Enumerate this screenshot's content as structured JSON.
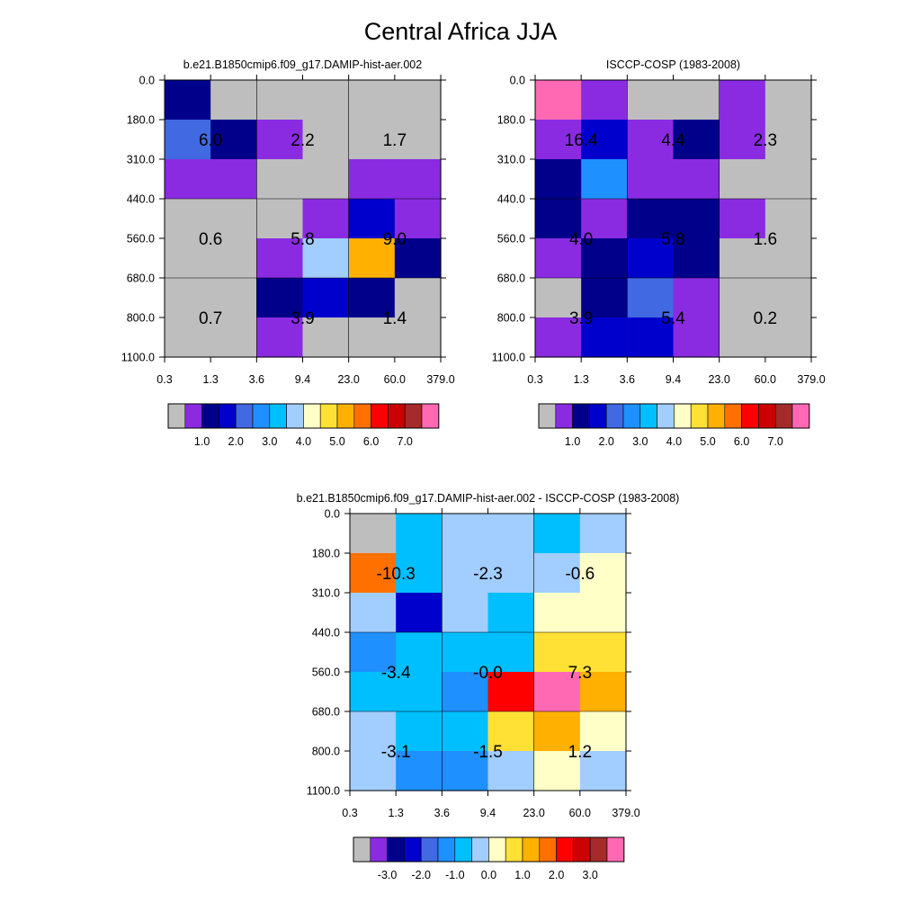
{
  "title": "Central Africa JJA",
  "x_tick_labels": [
    "0.3",
    "1.3",
    "3.6",
    "9.4",
    "23.0",
    "60.0",
    "379.0"
  ],
  "y_tick_labels": [
    "0.0",
    "180.0",
    "310.0",
    "440.0",
    "560.0",
    "680.0",
    "800.0",
    "1100.0"
  ],
  "colors": {
    "c0": "#bebebe",
    "c1": "#8a2be2",
    "c2": "#00008b",
    "c3": "#0000cd",
    "c4": "#4169e1",
    "c5": "#1e90ff",
    "c6": "#00bfff",
    "c7": "#a2cdff",
    "c8": "#ffffc8",
    "c9": "#ffe135",
    "c10": "#ffb000",
    "c11": "#ff7000",
    "c12": "#ff0000",
    "c13": "#cd0000",
    "c14": "#a52a2a",
    "c15": "#ff69b4"
  },
  "chart_data": [
    {
      "type": "heatmap",
      "title": "b.e21.B1850cmip6.f09_g17.DAMIP-hist-aer.002",
      "x_edges": [
        "0.3",
        "1.3",
        "3.6",
        "9.4",
        "23.0",
        "60.0",
        "379.0"
      ],
      "y_edges": [
        "0.0",
        "180.0",
        "310.0",
        "440.0",
        "560.0",
        "680.0",
        "800.0",
        "1100.0"
      ],
      "cell_colors": [
        [
          "c2",
          "c0",
          "c0",
          "c0",
          "c0",
          "c0"
        ],
        [
          "c4",
          "c2",
          "c1",
          "c0",
          "c0",
          "c0"
        ],
        [
          "c1",
          "c1",
          "c0",
          "c0",
          "c1",
          "c1"
        ],
        [
          "c0",
          "c0",
          "c0",
          "c1",
          "c3",
          "c1"
        ],
        [
          "c0",
          "c0",
          "c1",
          "c7",
          "c10",
          "c2"
        ],
        [
          "c0",
          "c0",
          "c2",
          "c3",
          "c2",
          "c0"
        ],
        [
          "c0",
          "c0",
          "c1",
          "c0",
          "c0",
          "c0"
        ]
      ],
      "group_labels": [
        [
          "6.0",
          "2.2",
          "1.7"
        ],
        [
          "0.6",
          "5.8",
          "9.0"
        ],
        [
          "0.7",
          "3.9",
          "1.4"
        ]
      ],
      "colorbar_labels": [
        "1.0",
        "2.0",
        "3.0",
        "4.0",
        "5.0",
        "6.0",
        "7.0"
      ]
    },
    {
      "type": "heatmap",
      "title": "ISCCP-COSP (1983-2008)",
      "x_edges": [
        "0.3",
        "1.3",
        "3.6",
        "9.4",
        "23.0",
        "60.0",
        "379.0"
      ],
      "y_edges": [
        "0.0",
        "180.0",
        "310.0",
        "440.0",
        "560.0",
        "680.0",
        "800.0",
        "1100.0"
      ],
      "cell_colors": [
        [
          "c15",
          "c1",
          "c0",
          "c0",
          "c1",
          "c0"
        ],
        [
          "c1",
          "c3",
          "c1",
          "c2",
          "c1",
          "c0"
        ],
        [
          "c2",
          "c5",
          "c1",
          "c1",
          "c0",
          "c0"
        ],
        [
          "c2",
          "c1",
          "c2",
          "c2",
          "c1",
          "c0"
        ],
        [
          "c1",
          "c2",
          "c3",
          "c2",
          "c0",
          "c0"
        ],
        [
          "c0",
          "c2",
          "c4",
          "c1",
          "c0",
          "c0"
        ],
        [
          "c1",
          "c3",
          "c3",
          "c1",
          "c0",
          "c0"
        ]
      ],
      "group_labels": [
        [
          "16.4",
          "4.4",
          "2.3"
        ],
        [
          "4.0",
          "5.8",
          "1.6"
        ],
        [
          "3.9",
          "5.4",
          "0.2"
        ]
      ],
      "colorbar_labels": [
        "1.0",
        "2.0",
        "3.0",
        "4.0",
        "5.0",
        "6.0",
        "7.0"
      ]
    },
    {
      "type": "heatmap",
      "title": "b.e21.B1850cmip6.f09_g17.DAMIP-hist-aer.002 - ISCCP-COSP (1983-2008)",
      "x_edges": [
        "0.3",
        "1.3",
        "3.6",
        "9.4",
        "23.0",
        "60.0",
        "379.0"
      ],
      "y_edges": [
        "0.0",
        "180.0",
        "310.0",
        "440.0",
        "560.0",
        "680.0",
        "800.0",
        "1100.0"
      ],
      "cell_colors": [
        [
          "c0",
          "c6",
          "c7",
          "c7",
          "c6",
          "c7"
        ],
        [
          "c11",
          "c6",
          "c7",
          "c7",
          "c7",
          "c8"
        ],
        [
          "c7",
          "c3",
          "c7",
          "c6",
          "c8",
          "c8"
        ],
        [
          "c5",
          "c6",
          "c6",
          "c6",
          "c9",
          "c9"
        ],
        [
          "c6",
          "c6",
          "c5",
          "c12",
          "c15",
          "c10"
        ],
        [
          "c7",
          "c6",
          "c6",
          "c9",
          "c10",
          "c8"
        ],
        [
          "c7",
          "c5",
          "c5",
          "c7",
          "c8",
          "c7"
        ]
      ],
      "group_labels": [
        [
          "-10.3",
          "-2.3",
          "-0.6"
        ],
        [
          "-3.4",
          "-0.0",
          "7.3"
        ],
        [
          "-3.1",
          "-1.5",
          "1.2"
        ]
      ],
      "colorbar_labels": [
        "-3.0",
        "-2.0",
        "-1.0",
        "0.0",
        "1.0",
        "2.0",
        "3.0"
      ]
    }
  ]
}
